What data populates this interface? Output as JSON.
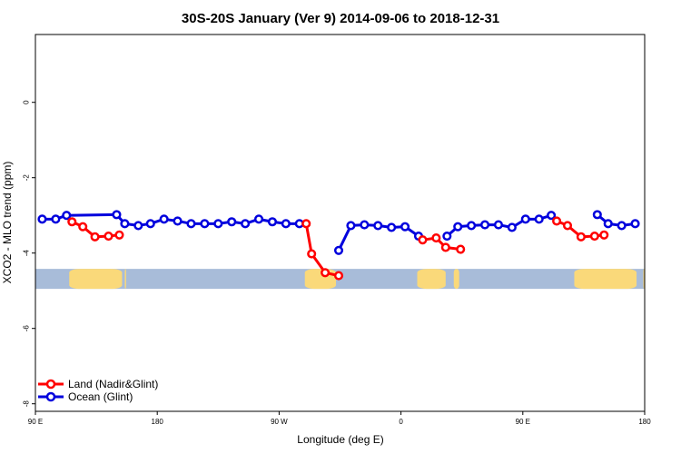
{
  "chart_data": {
    "type": "line",
    "title": "30S-20S January (Ver 9)   2014-09-06 to 2018-12-31",
    "xlabel": "Longitude (deg E)",
    "ylabel": "XCO2 - MLO trend (ppm)",
    "xlim": [
      90,
      540
    ],
    "ylim": [
      -8.2,
      1.8
    ],
    "x_ticks": [
      {
        "value": 90,
        "label": "90 E"
      },
      {
        "value": 180,
        "label": "180"
      },
      {
        "value": 270,
        "label": "90 W"
      },
      {
        "value": 360,
        "label": "0"
      },
      {
        "value": 450,
        "label": "90 E"
      },
      {
        "value": 540,
        "label": "180"
      }
    ],
    "y_ticks": [
      {
        "value": 0,
        "label": "0"
      },
      {
        "value": -2,
        "label": "-2"
      },
      {
        "value": -4,
        "label": "-4"
      },
      {
        "value": -6,
        "label": "-6"
      },
      {
        "value": -8,
        "label": "-8"
      }
    ],
    "map_strip": {
      "y_top": -4.42,
      "y_bottom": -4.95,
      "ocean_color": "#a8bcd9",
      "land_color": "#fad97a",
      "land_ranges": [
        [
          115,
          154
        ],
        [
          156,
          157
        ],
        [
          289,
          312
        ],
        [
          372,
          393
        ],
        [
          399,
          403
        ],
        [
          488,
          534
        ],
        [
          539,
          540
        ]
      ]
    },
    "legend": {
      "placement": "bottom-left",
      "entries": [
        {
          "name": "Land (Nadir&Glint)",
          "color": "#ff0000"
        },
        {
          "name": "Ocean (Glint)",
          "color": "#0000dd"
        }
      ]
    },
    "series": [
      {
        "name": "Ocean (Glint)",
        "color": "#0000dd",
        "segments": [
          [
            [
              95,
              -3.1
            ],
            [
              105,
              -3.1
            ],
            [
              113,
              -3.0
            ],
            [
              150,
              -2.98
            ],
            [
              156,
              -3.22
            ],
            [
              166,
              -3.27
            ],
            [
              175,
              -3.22
            ],
            [
              185,
              -3.1
            ],
            [
              195,
              -3.15
            ],
            [
              205,
              -3.22
            ],
            [
              215,
              -3.22
            ],
            [
              225,
              -3.22
            ],
            [
              235,
              -3.17
            ],
            [
              245,
              -3.22
            ],
            [
              255,
              -3.1
            ],
            [
              265,
              -3.17
            ],
            [
              275,
              -3.22
            ],
            [
              285,
              -3.22
            ]
          ],
          [
            [
              314,
              -3.93
            ],
            [
              323,
              -3.27
            ],
            [
              333,
              -3.25
            ],
            [
              343,
              -3.27
            ],
            [
              353,
              -3.32
            ],
            [
              363,
              -3.3
            ],
            [
              373,
              -3.55
            ]
          ],
          [
            [
              394,
              -3.55
            ],
            [
              402,
              -3.3
            ],
            [
              412,
              -3.27
            ],
            [
              422,
              -3.25
            ],
            [
              432,
              -3.25
            ],
            [
              442,
              -3.32
            ],
            [
              452,
              -3.1
            ],
            [
              462,
              -3.1
            ],
            [
              471,
              -3.0
            ]
          ],
          [
            [
              505,
              -2.98
            ],
            [
              513,
              -3.22
            ],
            [
              523,
              -3.27
            ],
            [
              533,
              -3.22
            ]
          ]
        ]
      },
      {
        "name": "Land (Nadir&Glint)",
        "color": "#ff0000",
        "segments": [
          [
            [
              117,
              -3.17
            ],
            [
              125,
              -3.3
            ],
            [
              134,
              -3.57
            ],
            [
              144,
              -3.55
            ],
            [
              152,
              -3.52
            ]
          ],
          [
            [
              290,
              -3.22
            ],
            [
              294,
              -4.02
            ],
            [
              304,
              -4.52
            ],
            [
              314,
              -4.6
            ]
          ],
          [
            [
              376,
              -3.65
            ],
            [
              386,
              -3.6
            ],
            [
              393,
              -3.85
            ],
            [
              404,
              -3.9
            ]
          ],
          [
            [
              475,
              -3.15
            ],
            [
              483,
              -3.27
            ],
            [
              493,
              -3.57
            ],
            [
              503,
              -3.55
            ],
            [
              510,
              -3.52
            ]
          ]
        ]
      }
    ]
  }
}
